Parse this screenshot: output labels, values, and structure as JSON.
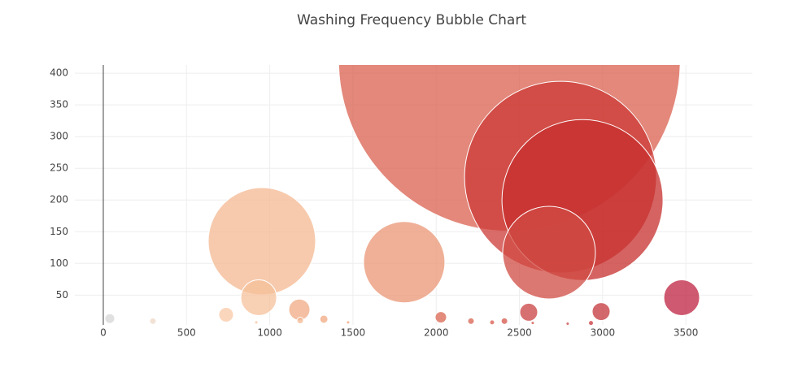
{
  "chart_data": {
    "type": "bubble",
    "title": "Washing Frequency Bubble Chart",
    "x": [
      2440,
      2747,
      2879,
      2678,
      953,
      1808,
      934,
      3475,
      1178,
      738,
      2556,
      2991,
      2028,
      39,
      298,
      1325,
      1183,
      2209,
      2410,
      2336,
      919,
      1471,
      2580,
      2790,
      2930
    ],
    "y": [
      420,
      236,
      200,
      117,
      135,
      102,
      46,
      46,
      27,
      19,
      23,
      24,
      15,
      13,
      9,
      12,
      10,
      9,
      9,
      7,
      7,
      7,
      6,
      5,
      6
    ],
    "sizes": [
      420,
      236,
      198,
      114,
      132,
      100,
      44,
      44,
      26,
      18,
      22,
      22,
      14,
      12,
      8,
      10,
      8,
      8,
      8,
      6,
      4,
      4,
      4,
      4,
      6
    ],
    "colors": [
      "#d9604f",
      "#cc3a35",
      "#c52f2e",
      "#d04b43",
      "#f4b891",
      "#e99574",
      "#f6c09b",
      "#bd2140",
      "#f0aa83",
      "#f8c8a6",
      "#c94040",
      "#c3353a",
      "#d96650",
      "#d6d6d6",
      "#eed8c8",
      "#f0a982",
      "#f3b48e",
      "#d86250",
      "#d45548",
      "#d85a4d",
      "#f6c09b",
      "#efa07a",
      "#d04b43",
      "#c94040",
      "#c9353a"
    ],
    "xlim": [
      -171,
      3900
    ],
    "ylim": [
      3,
      413
    ],
    "xticks": [
      0,
      500,
      1000,
      1500,
      2000,
      2500,
      3000,
      3500
    ],
    "yticks": [
      50,
      100,
      150,
      200,
      250,
      300,
      350,
      400
    ],
    "grid": true
  }
}
